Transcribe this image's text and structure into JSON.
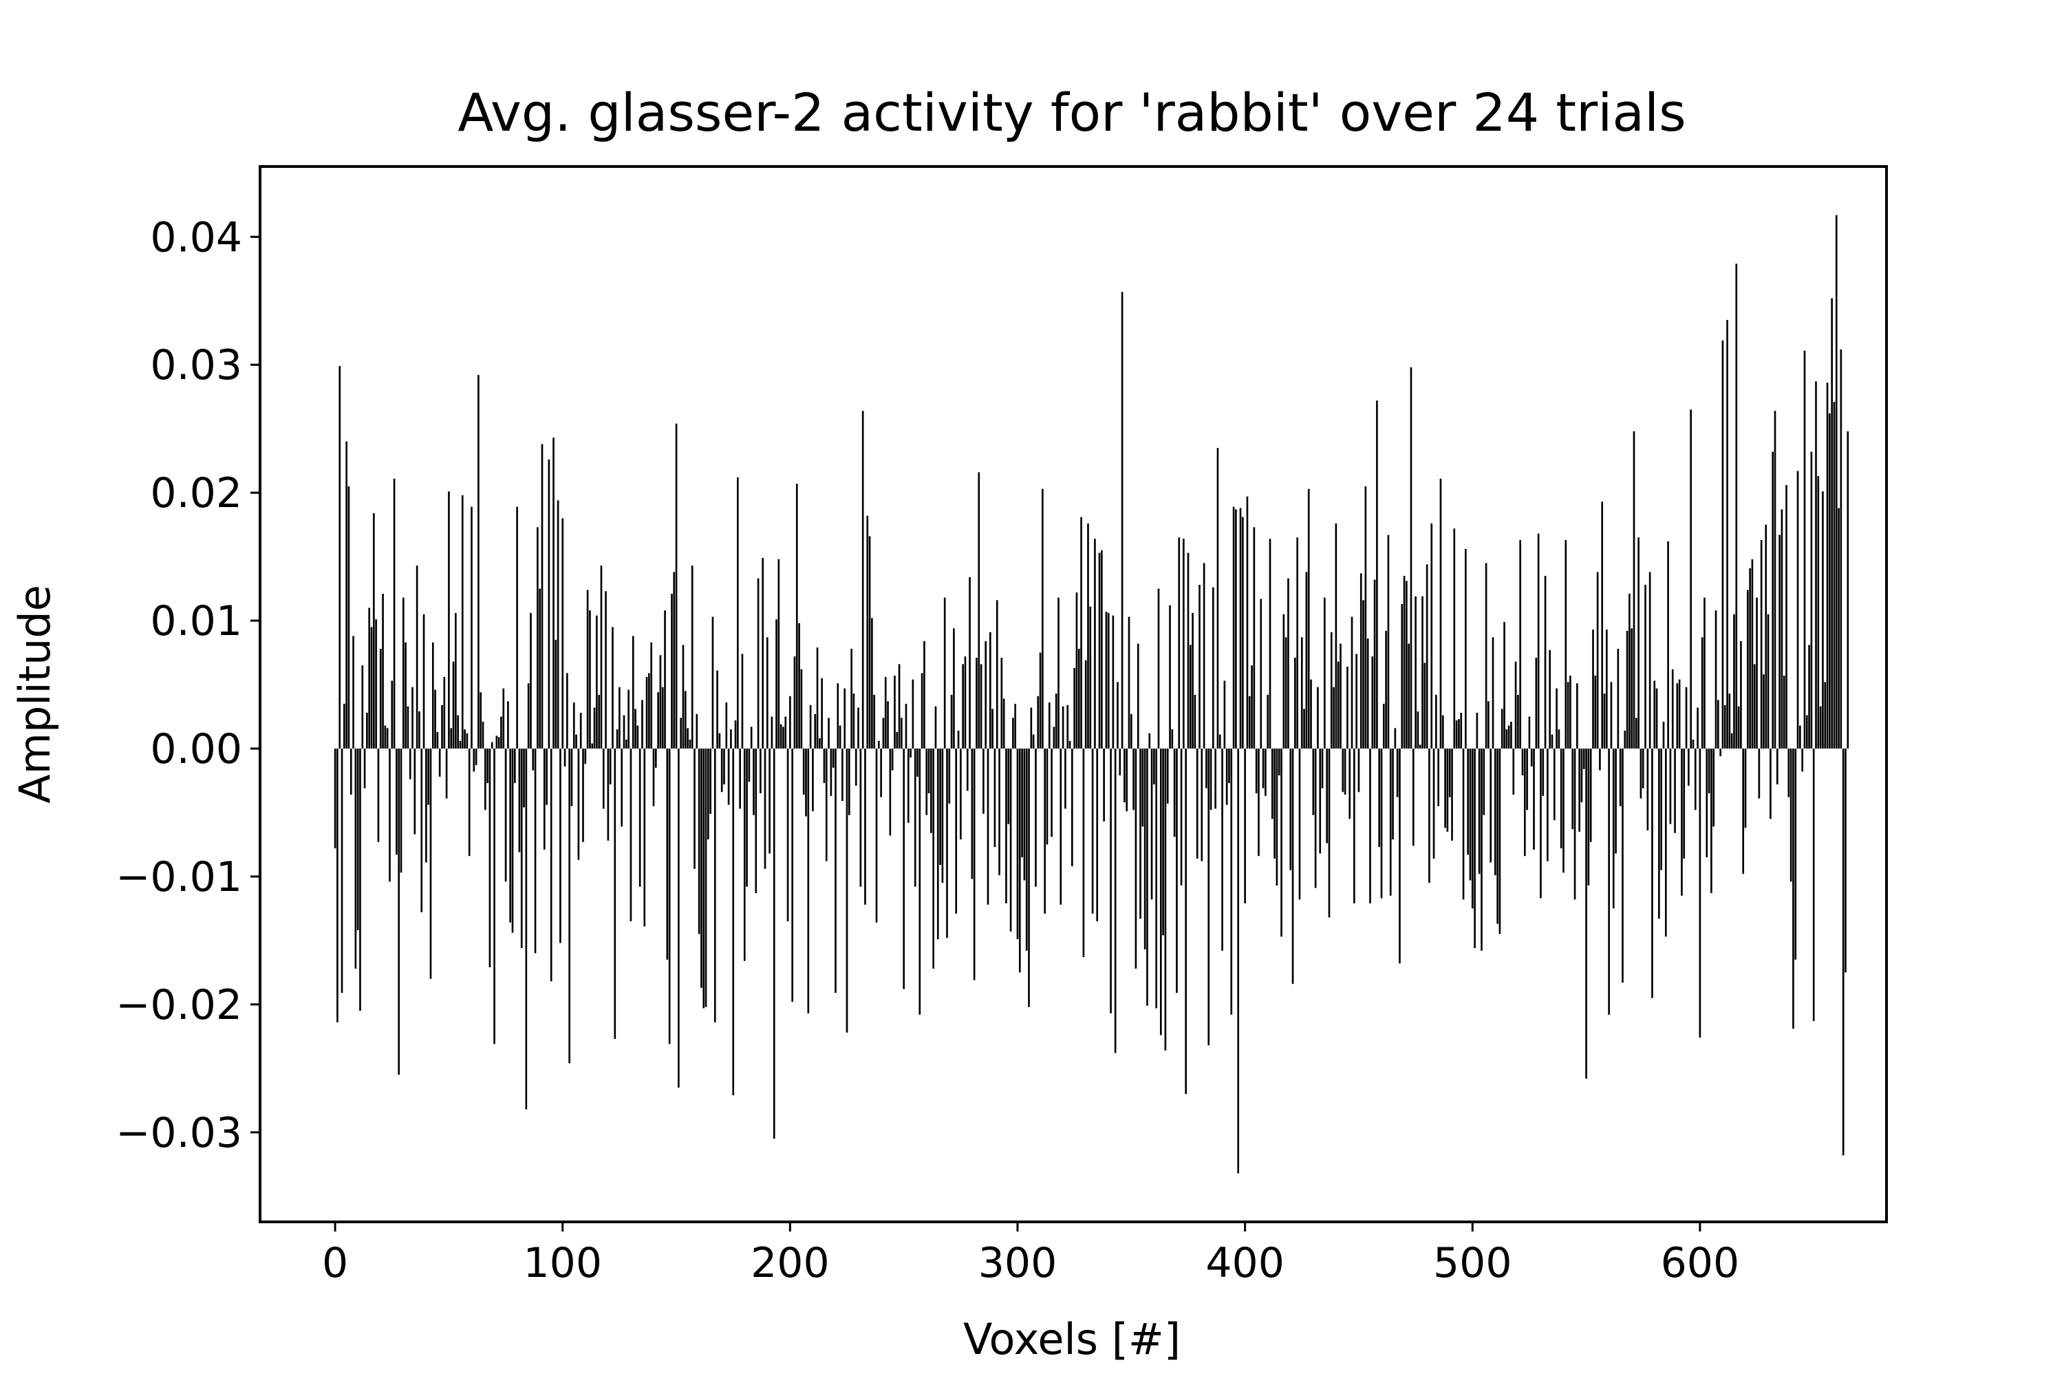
{
  "chart_data": {
    "type": "bar",
    "title": "Avg. glasser-2 activity for 'rabbit' over 24 trials",
    "xlabel": "Voxels [#]",
    "ylabel": "Amplitude",
    "xlim": [
      -33,
      682
    ],
    "ylim": [
      -0.037,
      0.0455
    ],
    "xticks": [
      0,
      100,
      200,
      300,
      400,
      500,
      600
    ],
    "xtick_labels": [
      "0",
      "100",
      "200",
      "300",
      "400",
      "500",
      "600"
    ],
    "yticks": [
      -0.03,
      -0.02,
      -0.01,
      0.0,
      0.01,
      0.02,
      0.03,
      0.04
    ],
    "ytick_labels": [
      "−0.03",
      "−0.02",
      "−0.01",
      "0.00",
      "0.01",
      "0.02",
      "0.03",
      "0.04"
    ],
    "grid": false,
    "bar_color": "#000000",
    "x_start": 0,
    "values": [
      -0.0078,
      -0.0214,
      0.0299,
      -0.0191,
      0.0035,
      0.024,
      0.0205,
      -0.0036,
      0.0088,
      -0.0172,
      -0.0142,
      -0.0205,
      0.0065,
      -0.0031,
      0.0028,
      0.011,
      0.0095,
      0.0184,
      0.0101,
      -0.0073,
      0.0078,
      0.0121,
      0.0018,
      0.0016,
      -0.0104,
      0.0053,
      0.0211,
      -0.0083,
      -0.0255,
      -0.0097,
      0.0118,
      0.0083,
      0.0033,
      -0.0024,
      0.0048,
      -0.0067,
      0.0143,
      0.0029,
      -0.0128,
      0.0105,
      -0.0089,
      -0.0044,
      -0.018,
      0.0083,
      0.0046,
      0.0013,
      -0.0022,
      0.0034,
      0.0056,
      -0.0039,
      0.0201,
      0.0016,
      0.0068,
      0.0106,
      0.0026,
      0.0006,
      0.0198,
      0.0015,
      0.0012,
      -0.0084,
      0.0189,
      -0.0018,
      -0.0013,
      0.0292,
      0.0044,
      0.0021,
      -0.0048,
      -0.0027,
      -0.0171,
      0.0005,
      -0.0231,
      0.001,
      0.0009,
      0.0025,
      0.0047,
      -0.0104,
      0.0037,
      -0.0136,
      -0.0144,
      -0.0027,
      0.0189,
      -0.0081,
      -0.0156,
      -0.0046,
      -0.0282,
      0.0051,
      0.0106,
      -0.0017,
      -0.016,
      0.0173,
      0.0125,
      0.0238,
      -0.0079,
      -0.0044,
      0.0226,
      -0.0182,
      0.0243,
      0.0085,
      0.0194,
      -0.0152,
      0.018,
      -0.0014,
      0.0059,
      -0.0246,
      -0.0045,
      0.0036,
      0.0011,
      -0.0087,
      0.0028,
      -0.0073,
      -0.0012,
      0.0124,
      0.0108,
      0.0004,
      0.0032,
      0.0104,
      0.0042,
      0.0143,
      -0.0047,
      0.0123,
      -0.0072,
      -0.0028,
      0.0095,
      -0.0227,
      0.0015,
      0.0048,
      -0.0061,
      0.0026,
      0.0007,
      0.0046,
      -0.0135,
      0.0088,
      0.0031,
      0.0018,
      -0.0108,
      0.0038,
      -0.0139,
      0.0056,
      0.0059,
      0.0083,
      -0.0045,
      -0.0015,
      0.0044,
      0.0073,
      0.0048,
      0.0108,
      -0.0165,
      -0.0231,
      0.0121,
      0.0138,
      0.0254,
      -0.0265,
      0.0024,
      0.0081,
      0.0045,
      0.0016,
      0.0007,
      0.0143,
      -0.0094,
      0.0027,
      -0.0145,
      -0.0187,
      -0.0203,
      -0.0202,
      -0.0071,
      -0.0051,
      0.0103,
      -0.0214,
      0.0061,
      0.0012,
      -0.0034,
      -0.0028,
      0.0036,
      -0.0044,
      0.0015,
      -0.0271,
      0.0022,
      0.0212,
      -0.0047,
      0.0074,
      -0.0166,
      -0.0108,
      -0.0026,
      0.0017,
      -0.0052,
      -0.0113,
      0.0133,
      -0.0035,
      0.0149,
      -0.0094,
      0.0087,
      -0.0082,
      0.0025,
      -0.0305,
      0.0101,
      0.0148,
      0.0019,
      0.0017,
      0.0025,
      -0.0135,
      0.0041,
      -0.0198,
      0.0072,
      0.0207,
      0.0098,
      0.0062,
      -0.0036,
      -0.0053,
      -0.0207,
      0.0034,
      -0.0049,
      0.0027,
      0.0079,
      0.0008,
      0.0055,
      -0.0027,
      -0.0088,
      0.0024,
      -0.0037,
      -0.0015,
      -0.0191,
      0.0051,
      0.0018,
      -0.0041,
      0.0047,
      -0.0222,
      -0.0052,
      0.0078,
      0.0043,
      -0.0029,
      0.0032,
      -0.0108,
      0.0264,
      -0.0122,
      0.0182,
      0.0166,
      0.0102,
      0.0042,
      -0.0136,
      0.0006,
      -0.0038,
      0.0024,
      0.0056,
      0.0037,
      -0.0068,
      -0.0017,
      0.0057,
      0.0013,
      0.0066,
      0.0024,
      -0.0188,
      0.0035,
      -0.0058,
      -0.0007,
      0.0054,
      -0.0108,
      -0.0022,
      -0.0208,
      0.0059,
      0.0084,
      -0.0052,
      -0.0035,
      -0.0066,
      -0.0172,
      0.0033,
      -0.0149,
      -0.0091,
      -0.0105,
      0.0118,
      -0.0148,
      -0.0043,
      0.0042,
      0.0094,
      -0.0129,
      0.0014,
      -0.0071,
      0.0066,
      0.0072,
      -0.0033,
      0.0134,
      -0.0102,
      -0.0181,
      0.0071,
      0.0216,
      0.0066,
      -0.0051,
      0.0084,
      -0.0122,
      0.0091,
      0.0031,
      -0.0077,
      0.0116,
      -0.0099,
      0.0071,
      0.0039,
      -0.0121,
      -0.0059,
      -0.0143,
      0.0024,
      0.0035,
      -0.0149,
      -0.0175,
      -0.0085,
      -0.0103,
      -0.0158,
      -0.0202,
      0.0032,
      0.0011,
      -0.0108,
      0.0041,
      0.0075,
      0.0203,
      -0.0129,
      -0.0075,
      0.0036,
      -0.0069,
      0.0017,
      0.0043,
      0.0118,
      -0.0122,
      0.0033,
      -0.0047,
      0.0034,
      0.0006,
      -0.0092,
      0.0063,
      0.0122,
      0.0078,
      0.0181,
      -0.0163,
      0.0069,
      0.0176,
      0.0111,
      -0.0129,
      0.0164,
      -0.0135,
      0.0153,
      0.0155,
      -0.0057,
      0.0107,
      0.0106,
      -0.0207,
      0.0104,
      -0.0238,
      0.0052,
      -0.0021,
      0.0357,
      -0.0042,
      -0.0049,
      0.0103,
      0.0027,
      -0.0048,
      -0.0172,
      0.0082,
      -0.0133,
      -0.0061,
      -0.0157,
      -0.0201,
      0.0012,
      -0.0118,
      -0.0028,
      -0.0203,
      0.0125,
      -0.0224,
      -0.0146,
      -0.0236,
      -0.0043,
      0.0112,
      0.0015,
      -0.0069,
      -0.0191,
      0.0165,
      -0.0107,
      0.0164,
      -0.027,
      0.0153,
      0.0081,
      0.0106,
      0.0042,
      -0.0086,
      0.0128,
      -0.0088,
      0.0145,
      -0.0031,
      -0.0232,
      -0.0048,
      0.0126,
      -0.0047,
      0.0235,
      0.0011,
      -0.0158,
      0.0053,
      -0.0044,
      -0.0027,
      -0.0208,
      0.0189,
      0.0187,
      -0.0332,
      0.0188,
      0.0181,
      -0.0121,
      0.0197,
      0.0041,
      0.0065,
      0.0173,
      -0.0035,
      -0.0084,
      0.0117,
      -0.0031,
      -0.0037,
      0.0042,
      0.0164,
      -0.0055,
      -0.0086,
      -0.0107,
      -0.0021,
      -0.0147,
      0.0105,
      0.0087,
      0.0133,
      -0.0095,
      -0.0184,
      0.0071,
      0.0165,
      -0.0118,
      0.0087,
      0.0031,
      0.0138,
      0.0203,
      0.0054,
      -0.0052,
      -0.0109,
      0.0048,
      -0.0082,
      -0.0031,
      0.0118,
      -0.0074,
      -0.0132,
      0.0091,
      0.0048,
      0.0176,
      0.0068,
      0.0082,
      -0.0034,
      -0.0036,
      0.0064,
      -0.0055,
      0.0103,
      -0.0121,
      0.0074,
      -0.0034,
      0.0137,
      0.0116,
      0.0205,
      0.0086,
      -0.0121,
      0.0072,
      0.0132,
      0.0272,
      -0.0077,
      -0.0117,
      0.0035,
      0.0092,
      0.0167,
      -0.0115,
      -0.0071,
      0.0016,
      -0.0038,
      -0.0168,
      0.0113,
      0.0135,
      0.0131,
      0.0082,
      0.0298,
      -0.0076,
      0.0119,
      0.0029,
      0.0003,
      0.0119,
      0.0067,
      0.0144,
      -0.0105,
      0.0176,
      -0.0086,
      0.0042,
      -0.0045,
      0.0211,
      0.0026,
      -0.0062,
      -0.0065,
      -0.0038,
      -0.0072,
      0.0172,
      0.0022,
      0.0023,
      0.0028,
      -0.0118,
      0.0156,
      -0.0083,
      -0.0103,
      -0.0125,
      -0.0156,
      0.0028,
      -0.0098,
      -0.0158,
      -0.0052,
      0.0145,
      0.0037,
      -0.0089,
      0.0087,
      -0.0099,
      -0.0137,
      -0.0145,
      0.0031,
      0.0099,
      0.0015,
      0.0018,
      0.0021,
      -0.0036,
      0.0068,
      0.0042,
      0.0163,
      -0.0021,
      -0.0084,
      -0.0048,
      0.0025,
      -0.0014,
      -0.0079,
      0.0071,
      0.0168,
      -0.0117,
      -0.0037,
      0.0135,
      -0.0088,
      0.0077,
      0.0011,
      -0.0056,
      0.0047,
      0.0015,
      -0.0078,
      -0.0097,
      0.0163,
      0.0052,
      0.0057,
      -0.0063,
      -0.0118,
      0.0051,
      -0.0065,
      -0.0042,
      -0.0016,
      -0.0258,
      -0.0107,
      -0.0073,
      0.0093,
      0.0057,
      0.0138,
      -0.0017,
      0.0193,
      0.0043,
      0.0093,
      -0.0208,
      0.0052,
      -0.0125,
      -0.0082,
      0.0078,
      -0.0045,
      -0.0183,
      0.0014,
      0.0092,
      0.0121,
      0.0094,
      0.0248,
      0.0024,
      0.0165,
      -0.0039,
      -0.0031,
      0.0128,
      -0.0064,
      0.0138,
      -0.0195,
      0.0053,
      0.0047,
      -0.0133,
      -0.0095,
      0.0021,
      -0.0147,
      0.0162,
      -0.0059,
      0.0062,
      -0.0066,
      0.0051,
      0.0054,
      -0.0115,
      -0.0086,
      0.0048,
      -0.0029,
      0.0265,
      0.0007,
      -0.0048,
      0.0032,
      -0.0226,
      0.0087,
      0.0118,
      -0.0085,
      -0.0035,
      -0.0113,
      -0.0061,
      0.0108,
      0.0038,
      -0.0006,
      0.0319,
      0.0034,
      0.0335,
      0.0043,
      0.0012,
      0.0105,
      0.0379,
      0.0033,
      0.0084,
      -0.0098,
      -0.0062,
      0.0124,
      0.0141,
      0.0148,
      0.0066,
      0.0118,
      -0.0039,
      0.0163,
      0.0058,
      0.0175,
      0.0105,
      -0.0055,
      0.0232,
      0.0264,
      -0.0028,
      0.0167,
      0.0187,
      0.0057,
      0.0206,
      -0.0038,
      -0.0104,
      -0.0219,
      -0.0165,
      0.0217,
      0.0018,
      -0.0018,
      0.0311,
      0.0026,
      0.0081,
      0.0232,
      -0.0213,
      0.0287,
      0.0213,
      0.0033,
      0.0201,
      0.0052,
      0.0286,
      0.0262,
      0.0352,
      0.0271,
      0.0417,
      0.0188,
      0.0312,
      -0.0318,
      -0.0175,
      0.0248
    ]
  }
}
